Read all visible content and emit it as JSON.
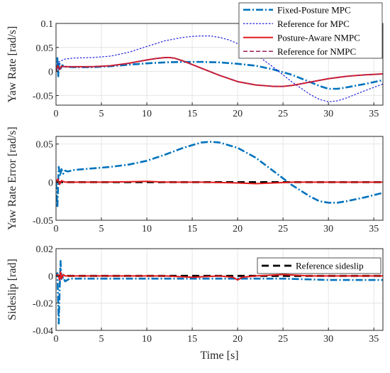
{
  "chart_data": [
    {
      "type": "line",
      "ylabel": "Yaw Rate [rad/s]",
      "xlabel": "",
      "xlim": [
        0,
        36
      ],
      "ylim": [
        -0.07,
        0.1
      ],
      "xticks": [
        0,
        5,
        10,
        15,
        20,
        25,
        30,
        35
      ],
      "yticks": [
        -0.05,
        0,
        0.05,
        0.1
      ],
      "ytick_labels": [
        "-0.05",
        "0",
        "0.05",
        "0.1"
      ],
      "grid": true,
      "legend": "top-right",
      "series": [
        {
          "name": "Fixed-Posture MPC",
          "color": "#0072BD",
          "style": "dashdot",
          "x": [
            0,
            0.15,
            0.25,
            0.35,
            0.5,
            0.7,
            1,
            2,
            4,
            6,
            8,
            10,
            12,
            14,
            16,
            18,
            20,
            22,
            24,
            26,
            28,
            29,
            30,
            31,
            32,
            34,
            36
          ],
          "y": [
            0,
            0.028,
            -0.01,
            0.02,
            0.006,
            0.013,
            0.01,
            0.009,
            0.009,
            0.011,
            0.014,
            0.017,
            0.019,
            0.02,
            0.02,
            0.019,
            0.016,
            0.012,
            0.004,
            -0.007,
            -0.022,
            -0.03,
            -0.036,
            -0.036,
            -0.033,
            -0.026,
            -0.018
          ]
        },
        {
          "name": "Reference for MPC",
          "color": "#1f1fe0",
          "style": "dotted",
          "x": [
            0,
            0.3,
            1,
            2,
            4,
            6,
            8,
            10,
            12,
            14,
            15,
            16,
            17,
            18,
            19,
            20,
            22,
            24,
            26,
            28,
            29,
            30,
            31,
            32,
            34,
            36
          ],
          "y": [
            0,
            0.02,
            0.026,
            0.028,
            0.029,
            0.032,
            0.04,
            0.052,
            0.064,
            0.071,
            0.073,
            0.074,
            0.074,
            0.071,
            0.066,
            0.058,
            0.036,
            0.008,
            -0.022,
            -0.048,
            -0.058,
            -0.063,
            -0.061,
            -0.055,
            -0.04,
            -0.026
          ]
        },
        {
          "name": "Posture-Aware NMPC",
          "color": "#e31a1c",
          "style": "solid",
          "x": [
            0,
            0.2,
            0.4,
            0.6,
            1,
            2,
            4,
            6,
            8,
            10,
            11,
            12,
            12.5,
            13,
            14,
            16,
            18,
            20,
            22,
            24,
            25,
            26,
            28,
            30,
            32,
            34,
            36
          ],
          "y": [
            0,
            0.012,
            0.004,
            0.011,
            0.01,
            0.01,
            0.01,
            0.012,
            0.017,
            0.024,
            0.027,
            0.029,
            0.029,
            0.028,
            0.022,
            0.007,
            -0.008,
            -0.021,
            -0.028,
            -0.031,
            -0.031,
            -0.029,
            -0.022,
            -0.015,
            -0.01,
            -0.007,
            -0.005
          ]
        },
        {
          "name": "Reference for NMPC",
          "color": "#a0205a",
          "style": "dashed",
          "x": [
            0,
            0.2,
            0.4,
            0.6,
            1,
            2,
            4,
            6,
            8,
            10,
            11,
            12,
            12.5,
            13,
            14,
            16,
            18,
            20,
            22,
            24,
            25,
            26,
            28,
            30,
            32,
            34,
            36
          ],
          "y": [
            0,
            0.011,
            0.005,
            0.01,
            0.01,
            0.01,
            0.01,
            0.012,
            0.017,
            0.024,
            0.027,
            0.029,
            0.029,
            0.028,
            0.022,
            0.007,
            -0.008,
            -0.021,
            -0.028,
            -0.031,
            -0.031,
            -0.029,
            -0.022,
            -0.015,
            -0.01,
            -0.007,
            -0.005
          ]
        }
      ]
    },
    {
      "type": "line",
      "ylabel": "Yaw Rate Error [rad/s]",
      "xlabel": "",
      "xlim": [
        0,
        36
      ],
      "ylim": [
        -0.05,
        0.06
      ],
      "xticks": [
        0,
        5,
        10,
        15,
        20,
        25,
        30,
        35
      ],
      "yticks": [
        -0.05,
        0,
        0.05
      ],
      "ytick_labels": [
        "-0.05",
        "0",
        "0.05"
      ],
      "grid": true,
      "legend": "none",
      "series": [
        {
          "name": "",
          "color": "#000000",
          "style": "dashed-thick",
          "x": [
            0,
            36
          ],
          "y": [
            0,
            0
          ]
        },
        {
          "name": "",
          "color": "#0072BD",
          "style": "dashdot",
          "x": [
            0,
            0.15,
            0.3,
            0.45,
            0.6,
            0.8,
            1,
            1.3,
            2,
            4,
            6,
            8,
            10,
            12,
            14,
            16,
            17,
            18,
            20,
            22,
            24,
            26,
            28,
            29,
            30,
            31,
            32,
            34,
            36
          ],
          "y": [
            0,
            -0.033,
            0.02,
            0.008,
            0.017,
            0.011,
            0.015,
            0.014,
            0.016,
            0.018,
            0.02,
            0.023,
            0.028,
            0.036,
            0.045,
            0.052,
            0.053,
            0.052,
            0.045,
            0.032,
            0.014,
            -0.004,
            -0.019,
            -0.025,
            -0.027,
            -0.027,
            -0.025,
            -0.02,
            -0.014
          ]
        },
        {
          "name": "",
          "color": "#e31a1c",
          "style": "solid",
          "x": [
            0,
            0.2,
            0.4,
            0.6,
            1,
            3,
            5,
            8,
            10,
            12,
            14,
            16,
            18,
            20,
            22,
            24,
            26,
            28,
            30,
            32,
            34,
            36
          ],
          "y": [
            0,
            0.004,
            -0.003,
            0.002,
            0,
            0,
            0,
            0.0005,
            0.001,
            0,
            0,
            0,
            -0.0005,
            -0.001,
            -0.002,
            -0.001,
            0,
            0,
            0,
            0,
            0,
            0
          ]
        }
      ]
    },
    {
      "type": "line",
      "ylabel": "Sideslip [rad]",
      "xlabel": "Time [s]",
      "xlim": [
        0,
        36
      ],
      "ylim": [
        -0.04,
        0.02
      ],
      "xticks": [
        0,
        5,
        10,
        15,
        20,
        25,
        30,
        35
      ],
      "yticks": [
        -0.04,
        -0.02,
        0,
        0.02
      ],
      "ytick_labels": [
        "-0.04",
        "-0.02",
        "0",
        "0.02"
      ],
      "grid": true,
      "legend": "top-right",
      "series": [
        {
          "name": "Reference sideslip",
          "color": "#000000",
          "style": "dashed-thick",
          "x": [
            0,
            36
          ],
          "y": [
            0,
            0
          ]
        },
        {
          "name": "",
          "color": "#0072BD",
          "style": "dashdot",
          "x": [
            0,
            0.15,
            0.3,
            0.4,
            0.5,
            0.6,
            0.8,
            1,
            1.5,
            2,
            5,
            10,
            15,
            20,
            25,
            30,
            36
          ],
          "y": [
            0,
            0.002,
            -0.035,
            -0.01,
            0.011,
            -0.003,
            -0.001,
            -0.004,
            -0.002,
            -0.002,
            -0.002,
            -0.002,
            -0.002,
            -0.002,
            -0.002,
            -0.003,
            -0.003
          ]
        },
        {
          "name": "",
          "color": "#e31a1c",
          "style": "solid",
          "x": [
            0,
            0.2,
            0.4,
            0.5,
            0.6,
            0.8,
            1,
            2,
            5,
            8,
            10,
            12,
            15,
            18,
            19.5,
            20,
            20.5,
            22,
            25,
            28,
            30,
            33,
            36
          ],
          "y": [
            0,
            0.001,
            -0.003,
            0.003,
            -0.002,
            0.001,
            0,
            0,
            0,
            0,
            0,
            0,
            -0.001,
            0,
            -0.001,
            -0.003,
            -0.001,
            0,
            0.001,
            0,
            0,
            0,
            0
          ]
        }
      ]
    }
  ]
}
